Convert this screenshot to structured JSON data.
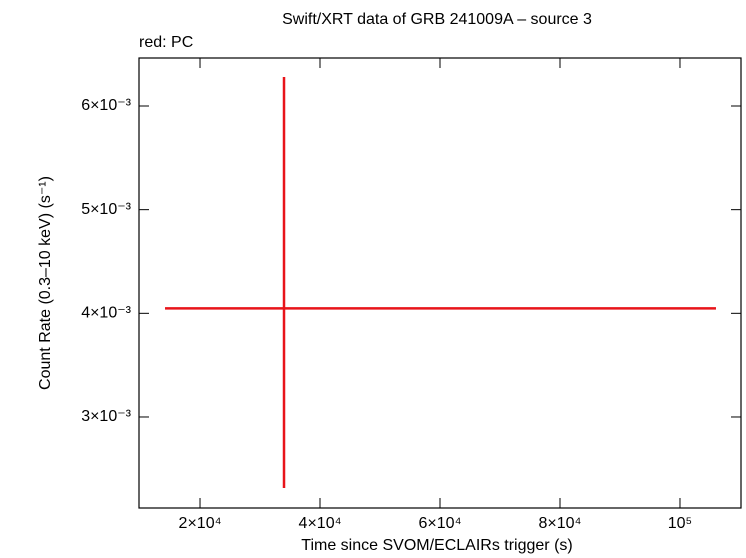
{
  "chart_data": {
    "type": "errorbar",
    "title": "Swift/XRT data of GRB 241009A – source 3",
    "annotation": "red: PC",
    "xlabel": "Time since SVOM/ECLAIRs trigger (s)",
    "ylabel": "Count Rate (0.3–10 keV) (s⁻¹)",
    "xlim": [
      9830,
      110170
    ],
    "ylim": [
      0.002122,
      0.006463
    ],
    "xticks": [
      {
        "value": 20000,
        "label": "2×10⁴"
      },
      {
        "value": 40000,
        "label": "4×10⁴"
      },
      {
        "value": 60000,
        "label": "6×10⁴"
      },
      {
        "value": 80000,
        "label": "8×10⁴"
      },
      {
        "value": 100000,
        "label": "10⁵"
      }
    ],
    "yticks": [
      {
        "value": 0.003,
        "label": "3×10⁻³"
      },
      {
        "value": 0.004,
        "label": "4×10⁻³"
      },
      {
        "value": 0.005,
        "label": "5×10⁻³"
      },
      {
        "value": 0.006,
        "label": "6×10⁻³"
      }
    ],
    "series": [
      {
        "name": "PC",
        "color": "#e8141a",
        "x": [
          34000
        ],
        "xlow": [
          14167
        ],
        "xhigh": [
          106000
        ],
        "values": [
          0.004048
        ],
        "ylow": [
          0.002315
        ],
        "yhigh": [
          0.00628
        ]
      }
    ]
  }
}
